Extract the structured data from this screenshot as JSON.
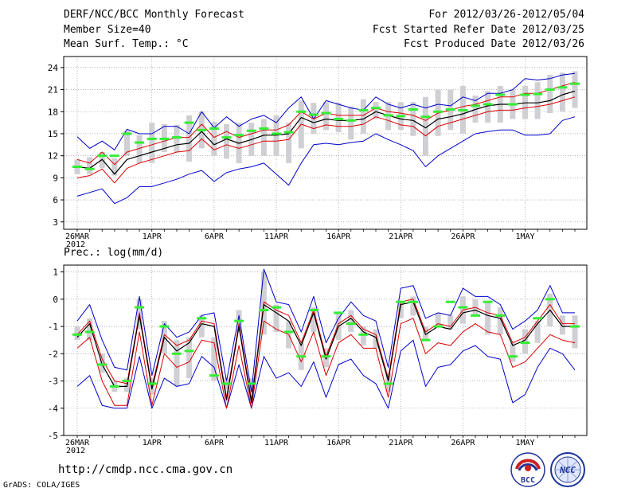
{
  "header": {
    "title": "DERF/NCC/BCC Monthly Forecast",
    "member_size": "Member Size=40",
    "variable": "Mean Surf. Temp.: °C",
    "forecast_period": "For 2012/03/26-2012/05/04",
    "refer_date": "Fcst Started Refer Date 2012/03/25",
    "produced_date": "Fcst Produced Date 2012/03/26"
  },
  "footer": {
    "url": "http://cmdp.ncc.cma.gov.cn",
    "grads": "GrADS: COLA/IGES",
    "bcc_logo_text": "BCC",
    "ncc_logo_text": "NCC"
  },
  "colors": {
    "envelope": "#0000cc",
    "spread": "#dd0000",
    "mean": "#000000",
    "box": "#cfcfd4",
    "member": "#33ee33",
    "grid": "#888888"
  },
  "chart_data": [
    {
      "id": "temperature",
      "type": "line",
      "title": "Mean Surf. Temp.: °C",
      "ylim": [
        2,
        25.5
      ],
      "yticks": [
        3,
        6,
        9,
        12,
        15,
        18,
        21,
        24
      ],
      "x_labels": [
        {
          "day": 0,
          "label": "26MAR"
        },
        {
          "day": 0,
          "label": "2012",
          "row": 2
        },
        {
          "day": 6,
          "label": "1APR"
        },
        {
          "day": 11,
          "label": "6APR"
        },
        {
          "day": 16,
          "label": "11APR"
        },
        {
          "day": 21,
          "label": "16APR"
        },
        {
          "day": 26,
          "label": "21APR"
        },
        {
          "day": 31,
          "label": "26APR"
        },
        {
          "day": 36,
          "label": "1MAY"
        }
      ],
      "max": [
        14.6,
        13,
        14,
        12.8,
        15.6,
        15,
        15,
        16,
        16,
        15,
        18,
        15.8,
        17.3,
        16,
        17,
        17.5,
        16.5,
        18.5,
        20,
        17,
        19.5,
        19,
        18.5,
        18.2,
        20,
        19,
        18.5,
        19,
        18.5,
        19,
        18.8,
        20,
        19.5,
        20.5,
        20.5,
        21,
        22.5,
        22.3,
        22.5,
        23,
        23.2
      ],
      "upper": [
        11.5,
        11,
        12.5,
        10.8,
        12.5,
        13,
        13.5,
        14,
        14.5,
        14.5,
        16.3,
        14.5,
        15.3,
        14.5,
        15,
        15.5,
        15.5,
        16.2,
        18,
        17,
        17.8,
        17.5,
        17.5,
        17.5,
        18.5,
        18,
        17.8,
        17.5,
        16.8,
        17.8,
        18.2,
        18.7,
        19,
        19.5,
        20,
        20,
        20.5,
        20.5,
        21,
        21.5,
        22
      ],
      "mean": [
        10.5,
        10.3,
        11.5,
        9.5,
        11.5,
        12,
        12.5,
        13,
        13.5,
        13.7,
        15.3,
        13.5,
        14.3,
        13.7,
        14.2,
        14.8,
        14.8,
        15,
        17.2,
        16.5,
        17,
        16.8,
        16.8,
        17,
        18,
        17.5,
        17,
        16.8,
        15.8,
        17,
        17.3,
        17.7,
        18.3,
        18.8,
        19,
        19,
        19.2,
        19.2,
        19.5,
        20.3,
        20.8
      ],
      "lower": [
        9,
        9.3,
        10.2,
        8.3,
        10.3,
        11,
        11.5,
        12,
        12.5,
        12.7,
        14.3,
        12.8,
        13.5,
        13,
        13.5,
        14,
        14,
        14.2,
        16.3,
        15.7,
        16.2,
        16,
        16,
        16.3,
        17.3,
        16.8,
        16.2,
        16,
        14.7,
        16,
        16.5,
        17,
        17.5,
        18,
        18.2,
        18.2,
        18.5,
        18.7,
        19,
        19.5,
        20
      ],
      "min": [
        6.5,
        7,
        7.5,
        5.5,
        6.3,
        7.8,
        7.8,
        8.3,
        8.8,
        9.5,
        10,
        8.5,
        9.7,
        10.2,
        10.5,
        11,
        9.5,
        8,
        11,
        13.5,
        13.7,
        13.5,
        13.8,
        14,
        15,
        14.2,
        13.5,
        12.7,
        10.5,
        12,
        13,
        14,
        15,
        15.3,
        15.5,
        15.5,
        14.8,
        14.8,
        15,
        16.8,
        17.3
      ],
      "members": [
        10.5,
        10.2,
        12,
        12,
        15,
        13.8,
        14.3,
        14.3,
        14.5,
        16.5,
        15.5,
        15.7,
        14.5,
        14.8,
        15.4,
        15.7,
        15,
        15.2,
        18,
        17.6,
        17.8,
        17,
        16.8,
        18.2,
        18.5,
        17.5,
        17.4,
        18.3,
        17.3,
        18,
        18.3,
        18.2,
        18.8,
        19,
        20.3,
        19,
        20.3,
        20.4,
        21,
        21.3,
        21.8
      ],
      "box_low": [
        9.5,
        9.5,
        10.3,
        9.3,
        12,
        11,
        11,
        12.5,
        12.5,
        11.2,
        13,
        12,
        11.6,
        11,
        12,
        12,
        12,
        11,
        13,
        15,
        15.5,
        15.2,
        14.2,
        15,
        17,
        15.5,
        15.5,
        14.7,
        12,
        14.7,
        15.5,
        15,
        16.5,
        16.5,
        16.5,
        17,
        17,
        17,
        17.8,
        18,
        18.5
      ],
      "box_high": [
        11.5,
        11.8,
        12.5,
        11.7,
        15.4,
        14.8,
        16.5,
        16.3,
        16.2,
        17.5,
        18,
        16.6,
        16.3,
        16.5,
        16.5,
        17,
        17.5,
        16.5,
        19.5,
        19.2,
        19.3,
        19.2,
        18.7,
        19.7,
        19.3,
        19.3,
        19.3,
        19.3,
        20,
        21,
        21,
        21.5,
        20.2,
        20.8,
        21.5,
        21,
        21.5,
        22,
        23,
        23.3,
        23.5
      ]
    },
    {
      "id": "precipitation",
      "type": "line",
      "title": "Prec.: log(mm/d)",
      "ylim": [
        -5,
        1.25
      ],
      "yticks": [
        -5,
        -4,
        -3,
        -2,
        -1,
        0,
        1
      ],
      "x_labels": [
        {
          "day": 0,
          "label": "26MAR"
        },
        {
          "day": 0,
          "label": "2012",
          "row": 2
        },
        {
          "day": 6,
          "label": "1APR"
        },
        {
          "day": 11,
          "label": "6APR"
        },
        {
          "day": 16,
          "label": "11APR"
        },
        {
          "day": 21,
          "label": "16APR"
        },
        {
          "day": 26,
          "label": "21APR"
        },
        {
          "day": 31,
          "label": "26APR"
        },
        {
          "day": 36,
          "label": "1MAY"
        }
      ],
      "max": [
        -0.8,
        -0.2,
        -1.5,
        -2.5,
        -2.6,
        0.1,
        -2.8,
        -0.9,
        -1.4,
        -1.2,
        -0.6,
        -0.5,
        -3,
        -0.6,
        -3.4,
        1.1,
        -0.1,
        -0.2,
        -1.2,
        0.1,
        -1.6,
        -0.7,
        -0.1,
        -0.6,
        -0.8,
        -2.5,
        0.4,
        0.5,
        -0.7,
        -0.5,
        -0.6,
        0.4,
        0.1,
        0.1,
        -0.2,
        -1.1,
        -0.8,
        -0.4,
        0.5,
        -0.5,
        -0.5
      ],
      "upper": [
        -1.3,
        -0.8,
        -2.2,
        -3,
        -3.1,
        -0.5,
        -3.2,
        -1.3,
        -1.7,
        -1.5,
        -0.8,
        -0.9,
        -3.6,
        -0.9,
        -3.7,
        -0.1,
        -0.4,
        -0.6,
        -1.6,
        -0.4,
        -2.1,
        -0.9,
        -0.6,
        -1.1,
        -1.3,
        -2.9,
        -0.1,
        0,
        -1.2,
        -0.9,
        -1,
        -0.4,
        -0.3,
        -0.5,
        -0.6,
        -1.6,
        -1.4,
        -0.8,
        -0.2,
        -0.9,
        -0.9
      ],
      "mean": [
        -1.4,
        -0.9,
        -2.4,
        -3.2,
        -3.2,
        -0.6,
        -3.3,
        -1.4,
        -1.9,
        -1.6,
        -0.9,
        -1,
        -3.7,
        -1,
        -3.8,
        -0.2,
        -0.5,
        -0.8,
        -1.7,
        -0.5,
        -2.2,
        -1,
        -0.7,
        -1.2,
        -1.4,
        -3,
        -0.2,
        -0.1,
        -1.3,
        -1,
        -1.1,
        -0.5,
        -0.4,
        -0.6,
        -0.7,
        -1.7,
        -1.5,
        -0.9,
        -0.4,
        -1,
        -1
      ],
      "lower": [
        -1.8,
        -1.4,
        -3,
        -3.9,
        -3.9,
        -1.2,
        -3.9,
        -2,
        -2.5,
        -2.3,
        -1.5,
        -1.6,
        -4,
        -1.7,
        -4,
        -0.8,
        -1.1,
        -1.3,
        -2.3,
        -1.2,
        -2.8,
        -1.6,
        -1.3,
        -1.8,
        -1.8,
        -3.6,
        -0.9,
        -0.7,
        -2,
        -1.6,
        -1.7,
        -1.2,
        -0.9,
        -1.2,
        -1.3,
        -2.5,
        -2.3,
        -1.8,
        -1.3,
        -1.5,
        -1.6
      ],
      "min": [
        -3.2,
        -2.8,
        -3.9,
        -4,
        -4,
        -2.1,
        -4,
        -2.9,
        -3.2,
        -3.1,
        -2.1,
        -2.5,
        -4,
        -2.4,
        -4,
        -2.1,
        -2.9,
        -2.7,
        -3.2,
        -2.3,
        -3.6,
        -2.4,
        -2.2,
        -2.8,
        -3.1,
        -4,
        -1.9,
        -1.5,
        -3.2,
        -2.5,
        -2.4,
        -1.9,
        -1.7,
        -2.1,
        -2.2,
        -3.8,
        -3.5,
        -2.5,
        -1.8,
        -2,
        -2.6
      ],
      "members": [
        -1.3,
        -1.2,
        -2.4,
        -3.2,
        -3,
        -0.3,
        -3.1,
        -1,
        -2,
        -1.9,
        -0.7,
        -2.8,
        -3.1,
        -0.8,
        -3.1,
        -0.4,
        -0.3,
        -1.2,
        -2.1,
        -0.4,
        -2.1,
        -0.5,
        -0.9,
        -1.3,
        -3.1,
        -0.1,
        -0.1,
        -1.5,
        -1,
        -0.1,
        -0.3,
        -0.6,
        -0.1,
        -0.6,
        -2.1,
        -1.6,
        -0.7,
        0,
        -1
      ],
      "members_days": [
        0,
        1,
        2,
        3,
        4,
        5,
        6,
        7,
        8,
        9,
        10,
        11,
        12,
        13,
        14,
        15,
        16,
        17,
        18,
        19,
        20,
        21,
        22,
        23,
        25,
        26,
        27,
        28,
        29,
        30,
        31,
        32,
        33,
        34,
        35,
        36,
        37,
        38,
        40
      ],
      "box_low": [
        -1.5,
        -1.5,
        -2.7,
        -3.4,
        -3.4,
        -1.1,
        -3.5,
        -2,
        -3.2,
        -2.9,
        -1.4,
        -3,
        -3.3,
        -1.2,
        -3.4,
        -1.3,
        -1.2,
        -1.8,
        -2.6,
        -1.2,
        -2.5,
        -1.5,
        -1.2,
        -1.7,
        -1.8,
        -3.4,
        -0.7,
        -0.6,
        -1.5,
        -1,
        -1.1,
        -0.9,
        -0.6,
        -1.3,
        -1.3,
        -2.3,
        -2,
        -1.6,
        -1,
        -1.3,
        -1.8
      ],
      "box_high": [
        -1,
        -0.7,
        -2,
        -3,
        -2.9,
        0,
        -2.9,
        -0.8,
        -1.5,
        -1.4,
        -0.6,
        -1.4,
        -2.9,
        -0.4,
        -2.9,
        1,
        -0.2,
        -0.8,
        -1.6,
        -0.3,
        -1.8,
        -0.5,
        -0.4,
        -1,
        -1.1,
        -2.7,
        -0.1,
        0.1,
        -1,
        -0.5,
        -0.6,
        0.1,
        0,
        -0.1,
        -0.3,
        -1.6,
        -1.1,
        -0.8,
        0.2,
        -0.6,
        -0.6
      ]
    }
  ]
}
